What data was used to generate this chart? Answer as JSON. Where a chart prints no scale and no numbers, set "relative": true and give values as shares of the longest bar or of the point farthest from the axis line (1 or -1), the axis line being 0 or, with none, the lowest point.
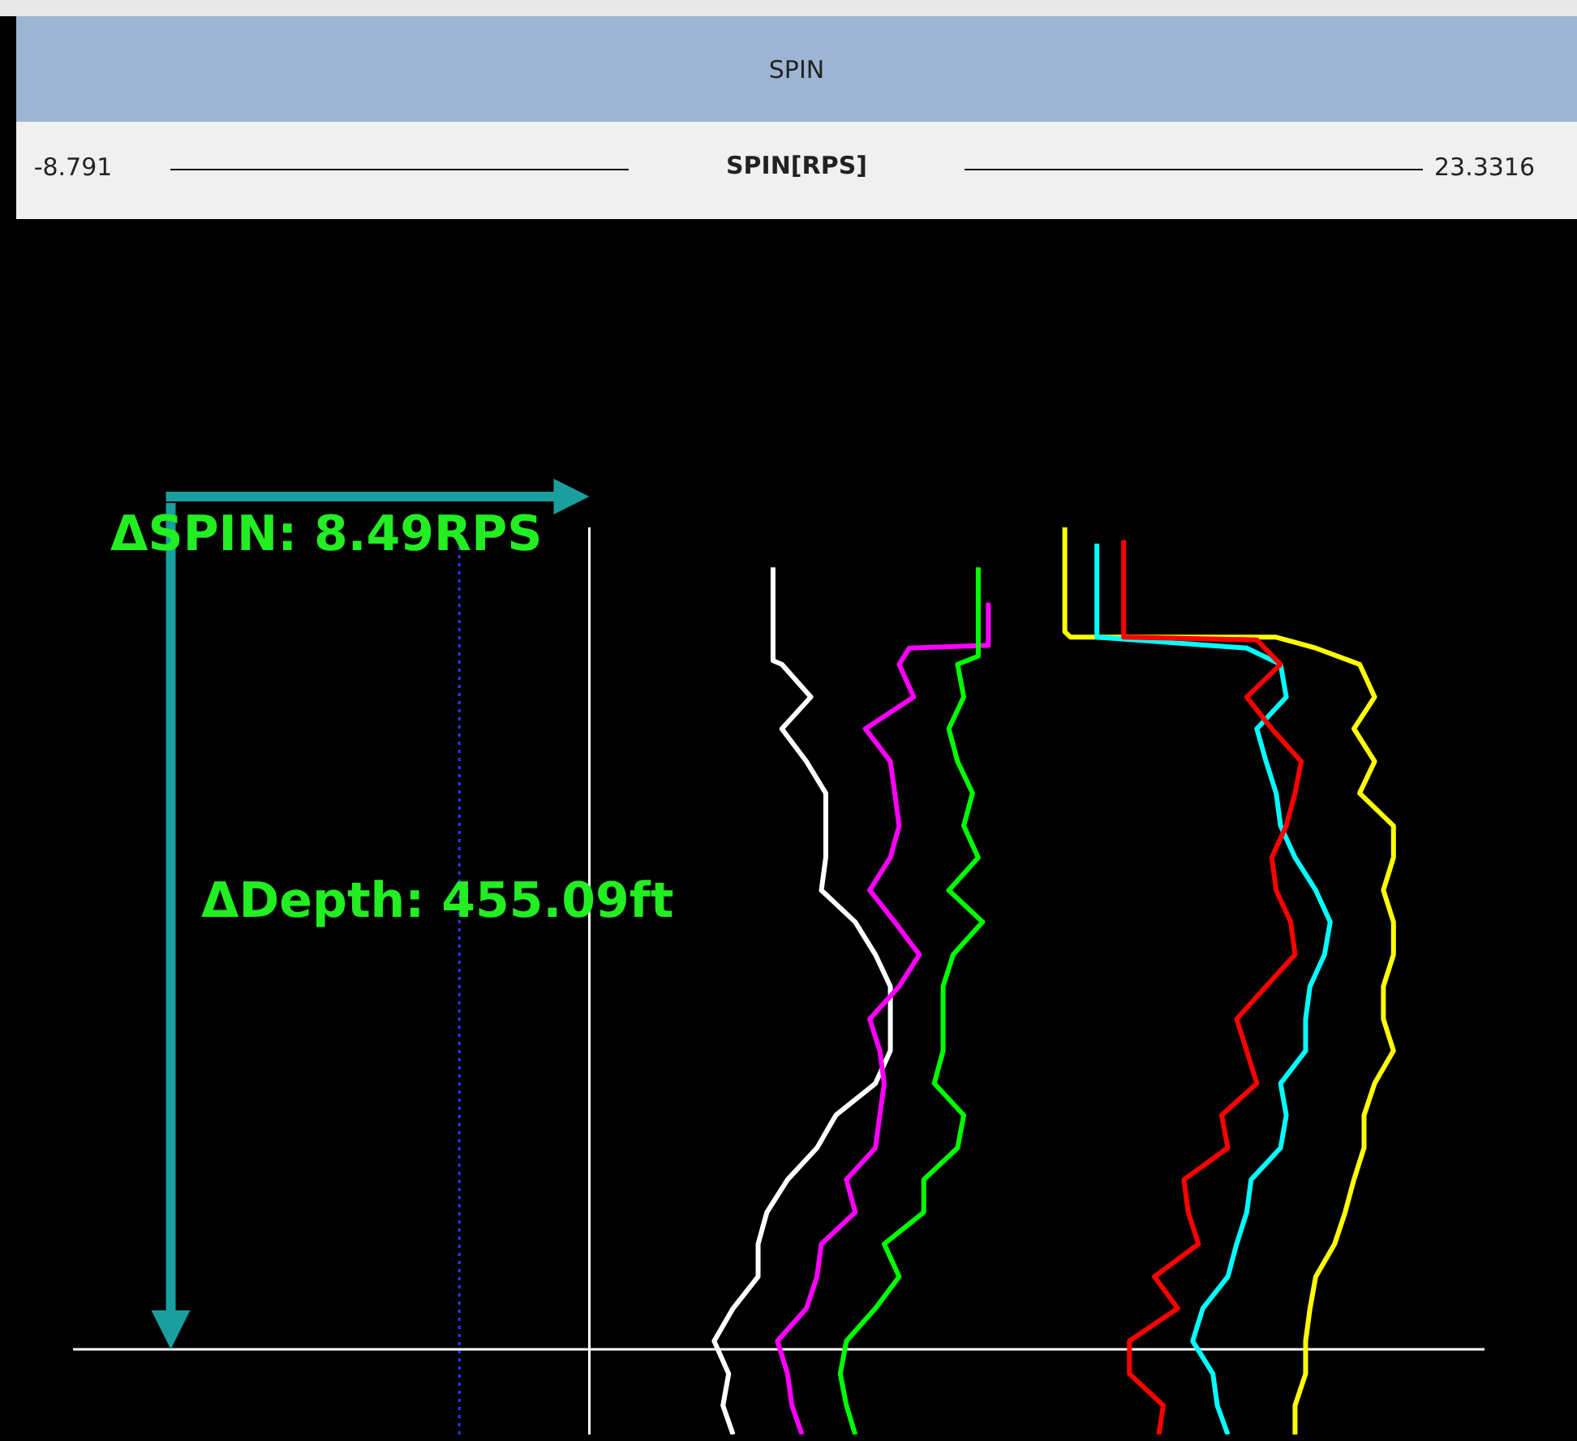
{
  "chart_data": {
    "type": "line",
    "title": "SPIN",
    "xlabel": "SPIN[RPS]",
    "xlim": [
      -8.791,
      23.3316
    ],
    "xticks": [
      -8.791,
      23.3316
    ],
    "relative": true,
    "annotations": [
      "ΔSPIN: 8.49RPS",
      "ΔDepth: 455.09ft"
    ],
    "ref_lines": [
      {
        "axis": "x",
        "value": 0,
        "color": "#3333ff",
        "line_style": "dotted"
      },
      {
        "axis": "x",
        "value": 2.96,
        "color": "#ffffff",
        "line_style": "solid"
      },
      {
        "axis": "y",
        "value": 0.094,
        "color": "#ffffff",
        "line_style": "solid"
      }
    ],
    "series": [
      {
        "color": "#ffff00",
        "x": [
          13.78,
          13.78,
          13.91,
          18.59,
          19.49,
          20.49,
          20.83,
          20.36,
          20.83,
          20.49,
          21.26,
          21.26,
          21.03,
          21.26,
          21.26,
          21.03,
          21.03,
          21.26,
          20.83,
          20.59,
          20.59,
          20.36,
          20.16,
          19.92,
          19.49,
          19.36,
          19.26,
          19.26,
          19.02,
          19.02
        ],
        "values": [
          1,
          0.885,
          0.879,
          0.879,
          0.867,
          0.849,
          0.813,
          0.778,
          0.742,
          0.707,
          0.671,
          0.636,
          0.6,
          0.565,
          0.529,
          0.494,
          0.458,
          0.423,
          0.387,
          0.352,
          0.316,
          0.281,
          0.245,
          0.21,
          0.174,
          0.139,
          0.103,
          0.067,
          0.032,
          0
        ]
      },
      {
        "color": "#00ffff",
        "x": [
          14.51,
          14.51,
          17.92,
          18.69,
          18.82,
          18.15,
          18.36,
          18.59,
          18.69,
          19.02,
          19.49,
          19.82,
          19.69,
          19.36,
          19.26,
          19.26,
          18.69,
          18.82,
          18.69,
          18.02,
          17.92,
          17.69,
          17.49,
          16.92,
          16.69,
          17.15,
          17.25,
          17.49
        ],
        "values": [
          0.982,
          0.879,
          0.867,
          0.849,
          0.813,
          0.778,
          0.742,
          0.707,
          0.671,
          0.636,
          0.6,
          0.565,
          0.529,
          0.494,
          0.458,
          0.423,
          0.387,
          0.352,
          0.316,
          0.281,
          0.245,
          0.21,
          0.174,
          0.139,
          0.103,
          0.067,
          0.032,
          0
        ]
      },
      {
        "color": "#ff0000",
        "x": [
          15.12,
          15.12,
          18.15,
          18.69,
          17.92,
          18.49,
          19.16,
          19.02,
          18.82,
          18.49,
          18.59,
          18.92,
          19.02,
          18.36,
          17.69,
          17.92,
          18.15,
          17.35,
          17.49,
          16.49,
          16.59,
          16.82,
          15.82,
          16.35,
          15.25,
          15.25,
          16.02,
          15.92
        ],
        "values": [
          0.986,
          0.879,
          0.876,
          0.849,
          0.813,
          0.778,
          0.742,
          0.707,
          0.671,
          0.636,
          0.6,
          0.565,
          0.529,
          0.494,
          0.458,
          0.423,
          0.387,
          0.352,
          0.316,
          0.281,
          0.245,
          0.21,
          0.174,
          0.139,
          0.103,
          0.067,
          0.032,
          0
        ]
      },
      {
        "color": "#ffffff",
        "x": [
          7.14,
          7.14,
          7.34,
          8.0,
          7.34,
          7.9,
          8.34,
          8.34,
          8.34,
          8.24,
          9.01,
          9.47,
          9.81,
          9.81,
          9.81,
          9.47,
          8.57,
          8.14,
          7.47,
          7.0,
          6.8,
          6.8,
          6.23,
          5.8,
          6.13,
          6.0,
          6.23
        ],
        "values": [
          0.956,
          0.853,
          0.849,
          0.813,
          0.778,
          0.742,
          0.707,
          0.671,
          0.636,
          0.6,
          0.565,
          0.529,
          0.494,
          0.458,
          0.423,
          0.387,
          0.352,
          0.316,
          0.281,
          0.245,
          0.21,
          0.174,
          0.139,
          0.103,
          0.067,
          0.032,
          0
        ]
      },
      {
        "color": "#ff00ff",
        "x": [
          12.04,
          12.04,
          10.24,
          10.01,
          10.34,
          9.24,
          9.81,
          9.91,
          10.01,
          9.81,
          9.34,
          9.91,
          10.47,
          10.01,
          9.34,
          9.57,
          9.67,
          9.57,
          9.47,
          8.81,
          9.01,
          8.24,
          8.14,
          7.9,
          7.24,
          7.47,
          7.57,
          7.8
        ],
        "values": [
          0.917,
          0.87,
          0.867,
          0.849,
          0.813,
          0.778,
          0.742,
          0.707,
          0.671,
          0.636,
          0.6,
          0.565,
          0.529,
          0.494,
          0.458,
          0.423,
          0.387,
          0.352,
          0.316,
          0.281,
          0.245,
          0.21,
          0.174,
          0.139,
          0.103,
          0.067,
          0.032,
          0
        ]
      },
      {
        "color": "#00ff00",
        "x": [
          11.81,
          11.81,
          11.34,
          11.48,
          11.14,
          11.34,
          11.68,
          11.48,
          11.81,
          11.14,
          11.91,
          11.24,
          11.01,
          11.01,
          11.01,
          10.81,
          11.48,
          11.34,
          10.57,
          10.57,
          9.67,
          10.01,
          9.47,
          8.81,
          8.67,
          8.81,
          9.01
        ],
        "values": [
          0.956,
          0.858,
          0.849,
          0.813,
          0.778,
          0.742,
          0.707,
          0.671,
          0.636,
          0.6,
          0.565,
          0.529,
          0.494,
          0.458,
          0.423,
          0.387,
          0.352,
          0.316,
          0.281,
          0.245,
          0.21,
          0.174,
          0.139,
          0.103,
          0.067,
          0.032,
          0
        ]
      }
    ]
  }
}
